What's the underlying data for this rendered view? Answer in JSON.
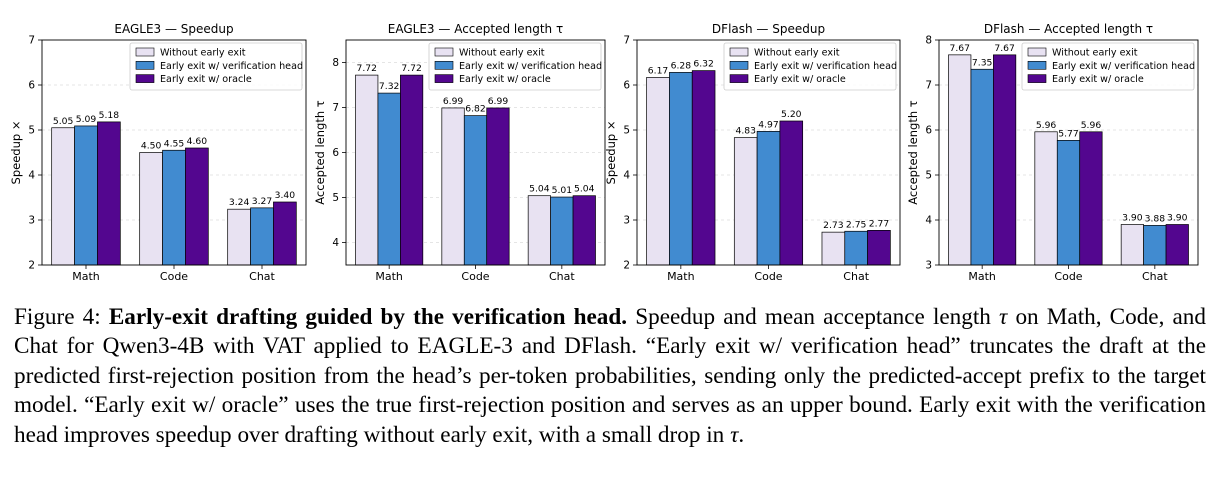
{
  "colors": {
    "without": "#e8e2f2",
    "verification": "#418bd0",
    "oracle": "#53068f",
    "grid": "#dddddd"
  },
  "chart_data": [
    {
      "type": "bar",
      "title": "EAGLE3 — Speedup",
      "xlabel": "",
      "ylabel": "Speedup ×",
      "categories": [
        "Math",
        "Code",
        "Chat"
      ],
      "ylim": [
        2,
        7
      ],
      "yticks": [
        "2",
        "3",
        "4",
        "5",
        "6",
        "7"
      ],
      "grid": "horizontal dashed",
      "legend_loc": "top-right",
      "series": [
        {
          "name": "Without early exit",
          "values": [
            5.05,
            4.5,
            3.24
          ],
          "labels": [
            "5.05",
            "4.50",
            "3.24"
          ]
        },
        {
          "name": "Early exit w/ verification head",
          "values": [
            5.09,
            4.55,
            3.27
          ],
          "labels": [
            "5.09",
            "4.55",
            "3.27"
          ]
        },
        {
          "name": "Early exit w/ oracle",
          "values": [
            5.18,
            4.6,
            3.4
          ],
          "labels": [
            "5.18",
            "4.60",
            "3.40"
          ]
        }
      ]
    },
    {
      "type": "bar",
      "title": "EAGLE3 — Accepted length τ",
      "xlabel": "",
      "ylabel": "Accepted length τ",
      "categories": [
        "Math",
        "Code",
        "Chat"
      ],
      "ylim": [
        3.5,
        8.5
      ],
      "yticks": [
        "4",
        "5",
        "6",
        "7",
        "8"
      ],
      "grid": "horizontal dashed",
      "legend_loc": "top-right",
      "series": [
        {
          "name": "Without early exit",
          "values": [
            7.72,
            6.99,
            5.04
          ],
          "labels": [
            "7.72",
            "6.99",
            "5.04"
          ]
        },
        {
          "name": "Early exit w/ verification head",
          "values": [
            7.32,
            6.82,
            5.01
          ],
          "labels": [
            "7.32",
            "6.82",
            "5.01"
          ]
        },
        {
          "name": "Early exit w/ oracle",
          "values": [
            7.72,
            6.99,
            5.04
          ],
          "labels": [
            "7.72",
            "6.99",
            "5.04"
          ]
        }
      ]
    },
    {
      "type": "bar",
      "title": "DFlash — Speedup",
      "xlabel": "",
      "ylabel": "Speedup ×",
      "categories": [
        "Math",
        "Code",
        "Chat"
      ],
      "ylim": [
        2,
        7
      ],
      "yticks": [
        "2",
        "3",
        "4",
        "5",
        "6",
        "7"
      ],
      "grid": "horizontal dashed",
      "legend_loc": "top-right",
      "series": [
        {
          "name": "Without early exit",
          "values": [
            6.17,
            4.83,
            2.73
          ],
          "labels": [
            "6.17",
            "4.83",
            "2.73"
          ]
        },
        {
          "name": "Early exit w/ verification head",
          "values": [
            6.28,
            4.97,
            2.75
          ],
          "labels": [
            "6.28",
            "4.97",
            "2.75"
          ]
        },
        {
          "name": "Early exit w/ oracle",
          "values": [
            6.32,
            5.2,
            2.77
          ],
          "labels": [
            "6.32",
            "5.20",
            "2.77"
          ]
        }
      ]
    },
    {
      "type": "bar",
      "title": "DFlash — Accepted length τ",
      "xlabel": "",
      "ylabel": "Accepted length τ",
      "categories": [
        "Math",
        "Code",
        "Chat"
      ],
      "ylim": [
        3,
        8
      ],
      "yticks": [
        "3",
        "4",
        "5",
        "6",
        "7",
        "8"
      ],
      "grid": "horizontal dashed",
      "legend_loc": "top-right",
      "series": [
        {
          "name": "Without early exit",
          "values": [
            7.67,
            5.96,
            3.9
          ],
          "labels": [
            "7.67",
            "5.96",
            "3.90"
          ]
        },
        {
          "name": "Early exit w/ verification head",
          "values": [
            7.35,
            5.77,
            3.88
          ],
          "labels": [
            "7.35",
            "5.77",
            "3.88"
          ]
        },
        {
          "name": "Early exit w/ oracle",
          "values": [
            7.67,
            5.96,
            3.9
          ],
          "labels": [
            "7.67",
            "5.96",
            "3.90"
          ]
        }
      ]
    }
  ],
  "caption": {
    "label": "Figure 4: ",
    "bold": "Early-exit drafting guided by the verification head.",
    "part1": " Speedup and mean acceptance length ",
    "tau1": "τ",
    "part2": " on Math, Code, and Chat for Qwen3-4B with VAT applied to EAGLE-3 and DFlash. “Early exit w/ verification head” truncates the draft at the predicted first-rejection position from the head’s per-token probabilities, sending only the predicted-accept prefix to the target model. “Early exit w/ oracle” uses the true first-rejection position and serves as an upper bound. Early exit with the verification head improves speedup over drafting without early exit, with a small drop in ",
    "tau2": "τ",
    "part3": "."
  }
}
